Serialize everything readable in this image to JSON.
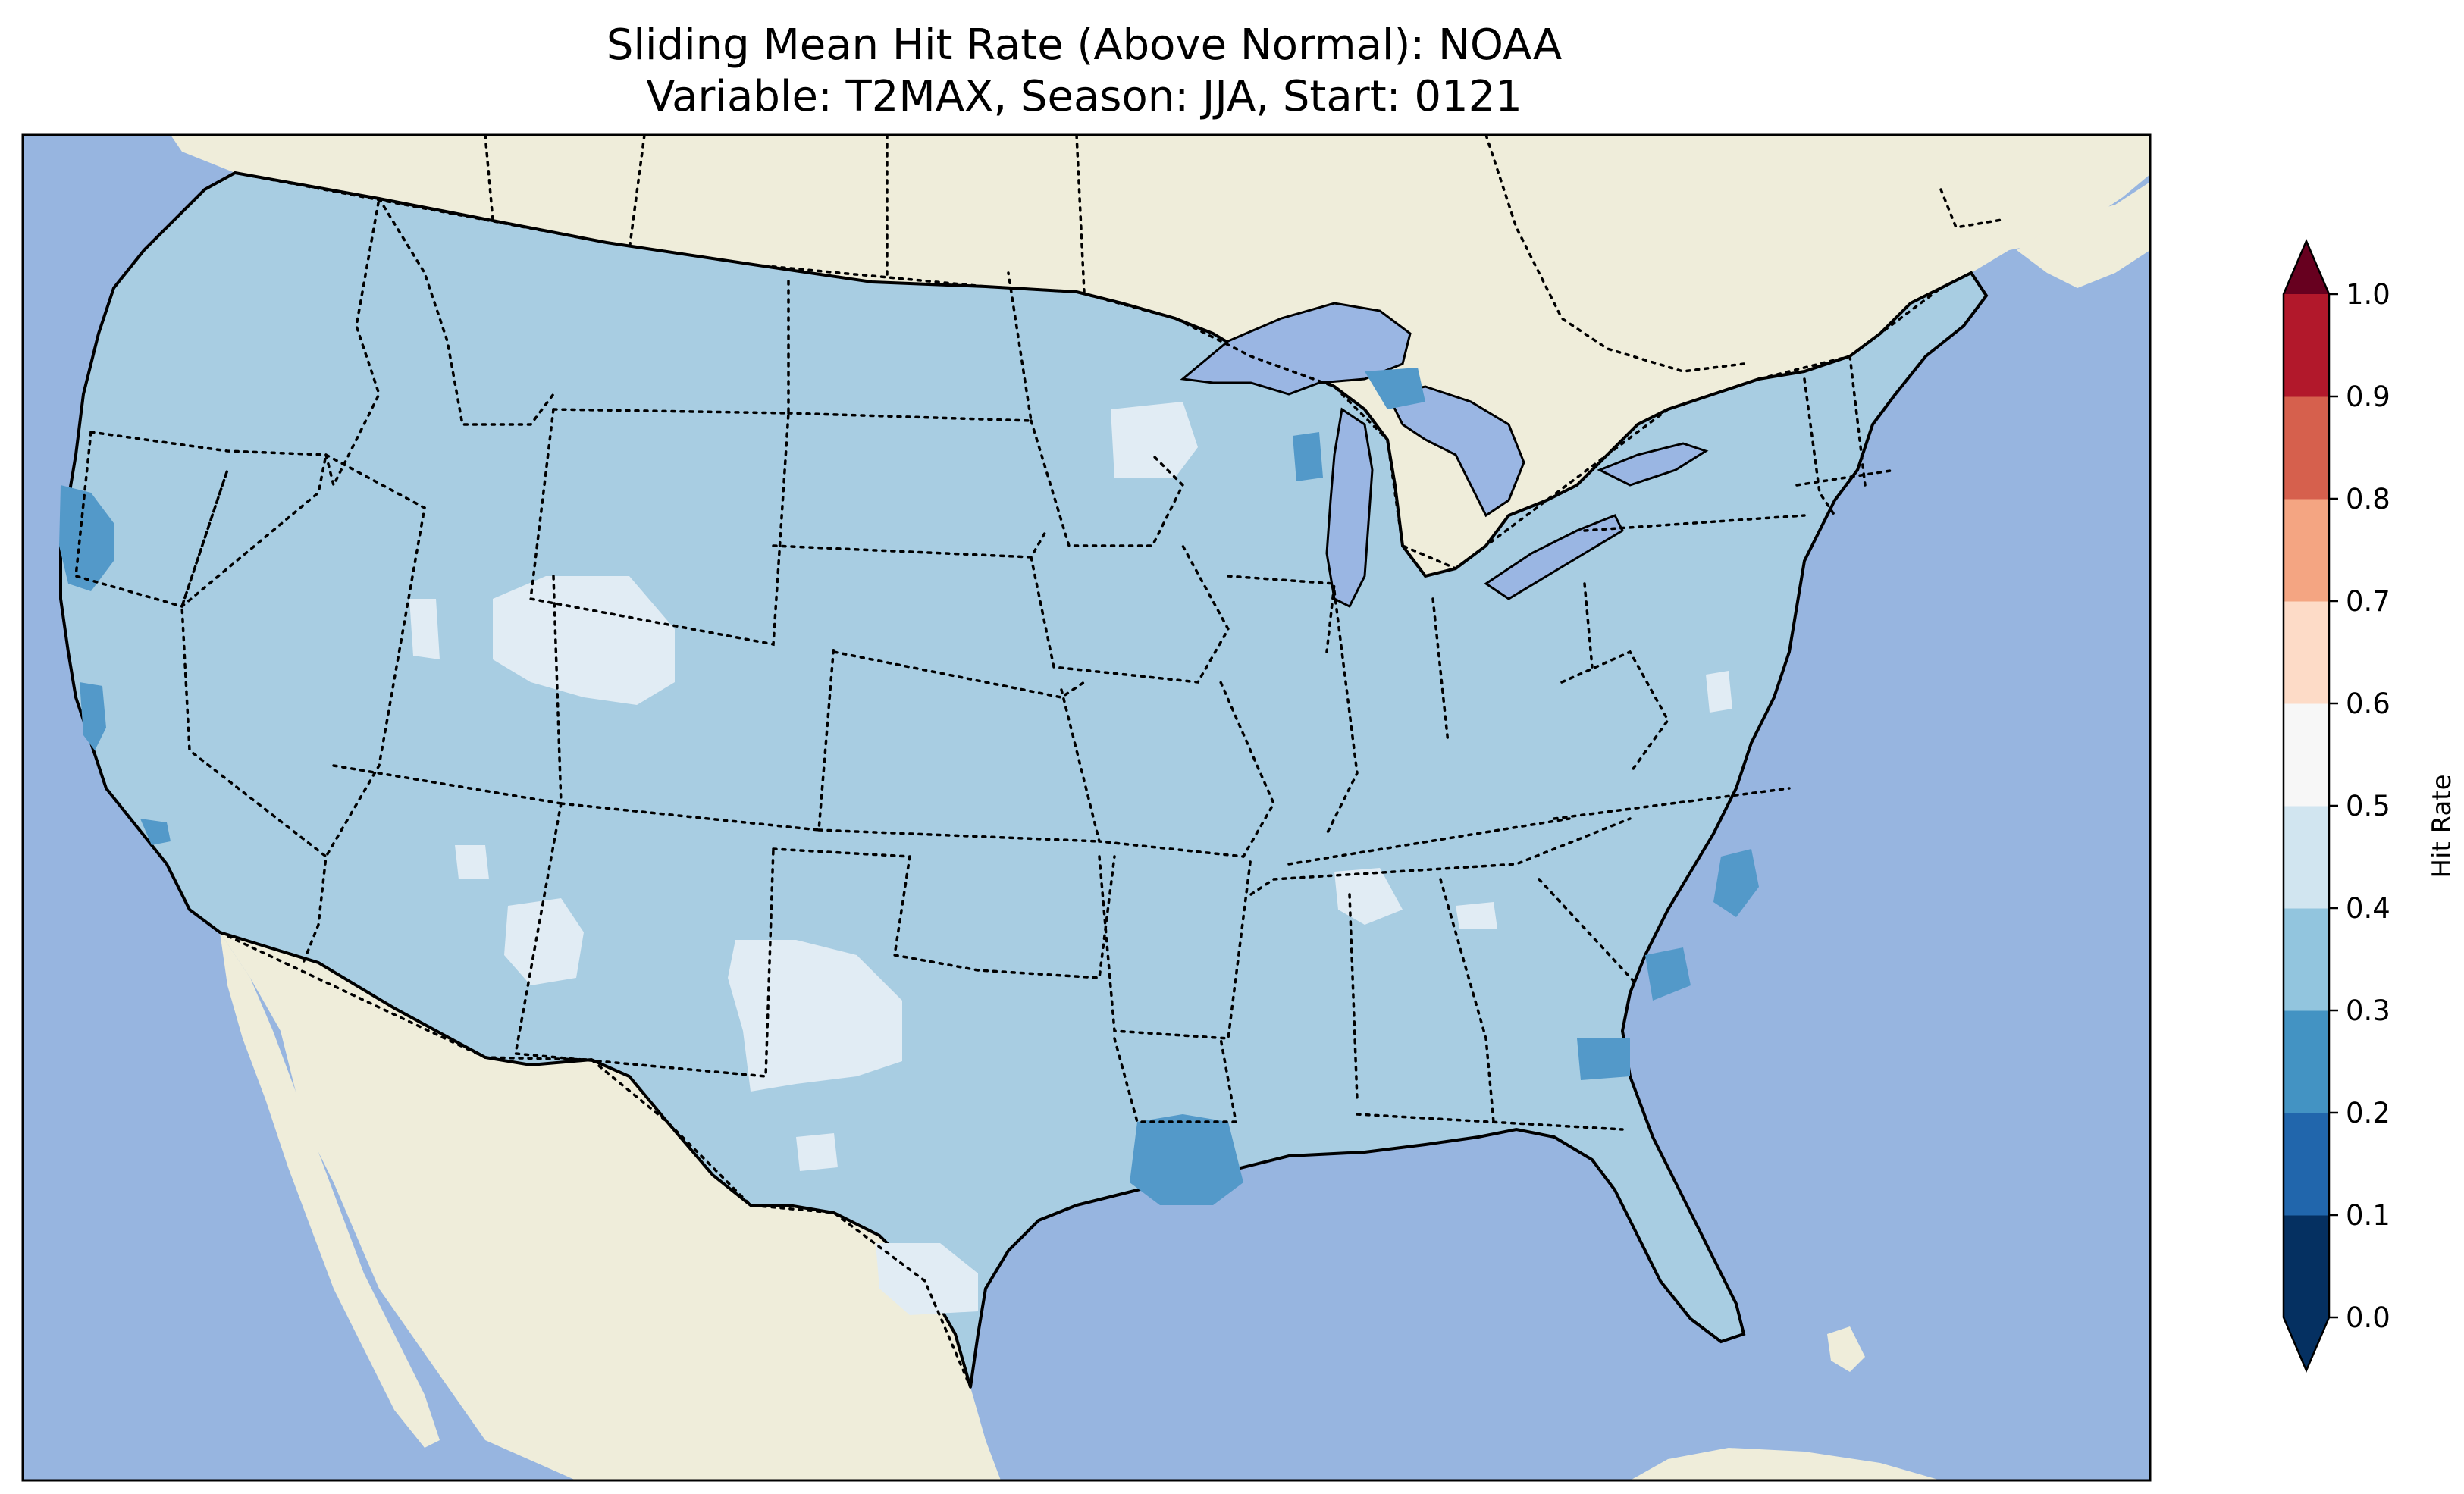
{
  "title": {
    "line1": "Sliding Mean Hit Rate (Above Normal): NOAA",
    "line2": "Variable: T2MAX, Season: JJA, Start: 0121"
  },
  "colors": {
    "ocean": "#97b5e0",
    "land": "#efedda",
    "lake": "#9ab6e3",
    "us_base": "#a8cde2"
  },
  "map": {
    "projection": "Lambert Conformal (CONUS)",
    "borders": "state boundaries dotted, coastlines solid"
  },
  "colorbar": {
    "label": "Hit Rate",
    "extend": "both",
    "ticks": [
      "0.0",
      "0.1",
      "0.2",
      "0.3",
      "0.4",
      "0.5",
      "0.6",
      "0.7",
      "0.8",
      "0.9",
      "1.0"
    ],
    "colors": [
      "#053061",
      "#2166ac",
      "#4393c3",
      "#92c5de",
      "#d1e5f0",
      "#f7f7f7",
      "#fddbc7",
      "#f4a582",
      "#d6604d",
      "#b2182b",
      "#67001f"
    ],
    "under_color": "#053061",
    "over_color": "#67001f",
    "dominant_bin": "0.3–0.4"
  },
  "chart_data": {
    "type": "heatmap",
    "variable": "T2MAX",
    "season": "JJA",
    "start": "0121",
    "model": "NOAA",
    "value_range": [
      0.0,
      1.0
    ],
    "predominant_value_bin": [
      0.3,
      0.4
    ],
    "regions": [
      {
        "area": "most of contiguous US",
        "bin": [
          0.3,
          0.4
        ]
      },
      {
        "area": "northern California coast",
        "bin": [
          0.2,
          0.3
        ]
      },
      {
        "area": "central California coast",
        "bin": [
          0.2,
          0.3
        ]
      },
      {
        "area": "Louisiana coast",
        "bin": [
          0.2,
          0.3
        ]
      },
      {
        "area": "North Carolina / South Carolina coast",
        "bin": [
          0.2,
          0.3
        ]
      },
      {
        "area": "southeast Georgia coast",
        "bin": [
          0.2,
          0.3
        ]
      },
      {
        "area": "eastern Wisconsin / Lake Michigan",
        "bin": [
          0.2,
          0.3
        ]
      },
      {
        "area": "northern Lake Michigan / Upper Peninsula",
        "bin": [
          0.2,
          0.3
        ]
      },
      {
        "area": "southwest Wyoming / northern Utah",
        "bin": [
          0.4,
          0.5
        ]
      },
      {
        "area": "eastern New Mexico / west Texas",
        "bin": [
          0.4,
          0.5
        ]
      },
      {
        "area": "central Arizona",
        "bin": [
          0.4,
          0.5
        ]
      },
      {
        "area": "northern Wisconsin / Minnesota",
        "bin": [
          0.4,
          0.5
        ]
      },
      {
        "area": "south Texas",
        "bin": [
          0.4,
          0.5
        ]
      },
      {
        "area": "northern Mississippi / Alabama",
        "bin": [
          0.4,
          0.5
        ]
      }
    ]
  }
}
